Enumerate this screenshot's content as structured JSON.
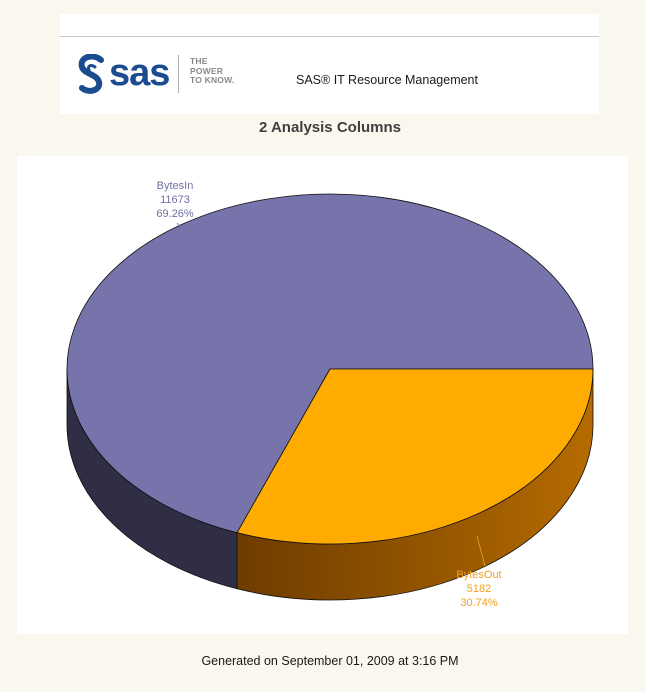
{
  "header": {
    "logo_text": "sas",
    "tagline": [
      "THE",
      "POWER",
      "TO KNOW."
    ],
    "product_name": "SAS® IT Resource Management"
  },
  "chart_data": {
    "type": "pie",
    "title": "2 Analysis Columns",
    "slices": [
      {
        "label": "BytesIn",
        "value": 11673,
        "percent": "69.26%",
        "color": "#7674aa",
        "side_color": "#2f2e45",
        "label_color": "#6f6fa6"
      },
      {
        "label": "BytesOut",
        "value": 5182,
        "percent": "30.74%",
        "color": "#ffab00",
        "side_color": "#b56b00",
        "label_color": "#f0a020"
      }
    ],
    "style": "3d"
  },
  "footer": {
    "generated": "Generated on September 01, 2009 at 3:16 PM"
  },
  "colors": {
    "page_background": "#faf7ee",
    "brand_blue": "#1a4c8f"
  }
}
